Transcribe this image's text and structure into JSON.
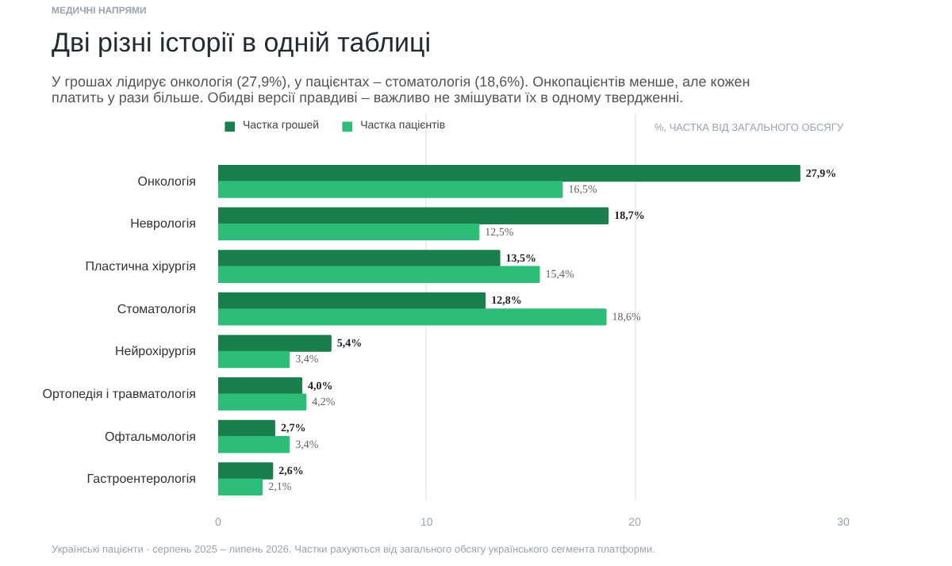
{
  "chart_data": {
    "type": "bar",
    "orientation": "horizontal",
    "title": "Дві різні історії в одній таблиці",
    "subtitle": "У грошах лідирує онкологія (27,9%), у пацієнтах – стоматологія (18,6%). Онкопацієнтів менше, але кожен\nплатить у рази більше. Обидві версії правдиві – важливо не змішувати їх в одному твердженні.",
    "xlabel": "%, ЧАСТКА ВІД ЗАГАЛЬНОГО ОБСЯГУ",
    "annotations": [
      "МЕДИЧНІ НАПРЯМИ",
      "Українські пацієнти · серпень 2025 – липень 2026. Частки рахуються від загального обсягу українського сегмента платформи."
    ],
    "categories": [
      "Онкологія",
      "Неврологія",
      "Пластична хірургія",
      "Стоматологія",
      "Нейрохірургія",
      "Ортопедія і травматологія",
      "Офтальмологія",
      "Гастроентерологія"
    ],
    "series": [
      {
        "name": "Частка грошей",
        "color": "#1a7f4b",
        "values": [
          27.9,
          18.7,
          13.5,
          12.8,
          5.4,
          4.0,
          2.7,
          2.6
        ],
        "value_labels": [
          "27,9%",
          "18,7%",
          "13,5%",
          "12,8%",
          "5,4%",
          "4,0%",
          "2,7%",
          "2,6%"
        ]
      },
      {
        "name": "Частка пацієнтів",
        "color": "#2dbd78",
        "values": [
          16.5,
          12.5,
          15.4,
          18.6,
          3.4,
          4.2,
          3.4,
          2.1
        ],
        "value_labels": [
          "16,5%",
          "12,5%",
          "15,4%",
          "18,6%",
          "3,4%",
          "4,2%",
          "3,4%",
          "2,1%"
        ]
      }
    ],
    "xlim": [
      0,
      30
    ],
    "xticks": [
      0,
      10,
      20,
      30
    ],
    "grid": "x",
    "legend": "top left"
  }
}
